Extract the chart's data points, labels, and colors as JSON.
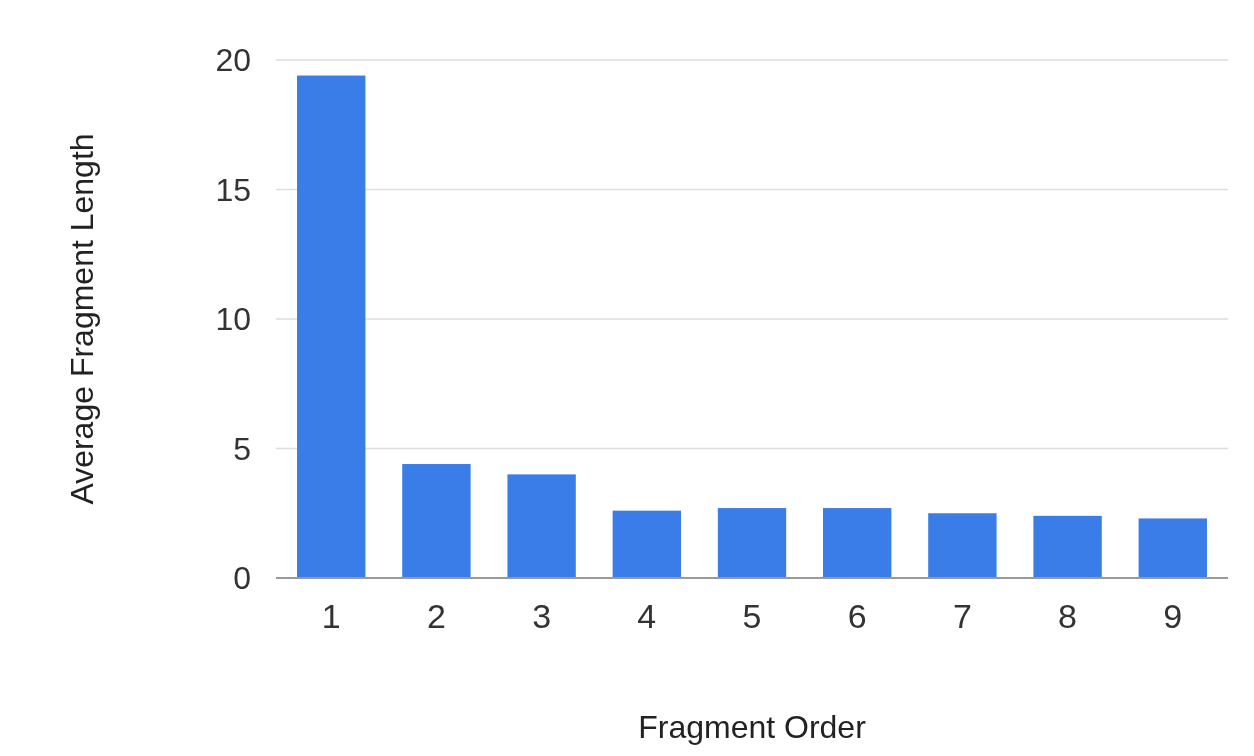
{
  "chart_data": {
    "type": "bar",
    "xlabel": "Fragment Order",
    "ylabel": "Average Fragment Length",
    "categories": [
      "1",
      "2",
      "3",
      "4",
      "5",
      "6",
      "7",
      "8",
      "9"
    ],
    "values": [
      19.4,
      4.4,
      4.0,
      2.6,
      2.7,
      2.7,
      2.5,
      2.4,
      2.3
    ],
    "color": "#3a7de8",
    "ylim": [
      0,
      20
    ],
    "yticks": [
      0,
      5,
      10,
      15,
      20
    ],
    "grid": "y"
  }
}
